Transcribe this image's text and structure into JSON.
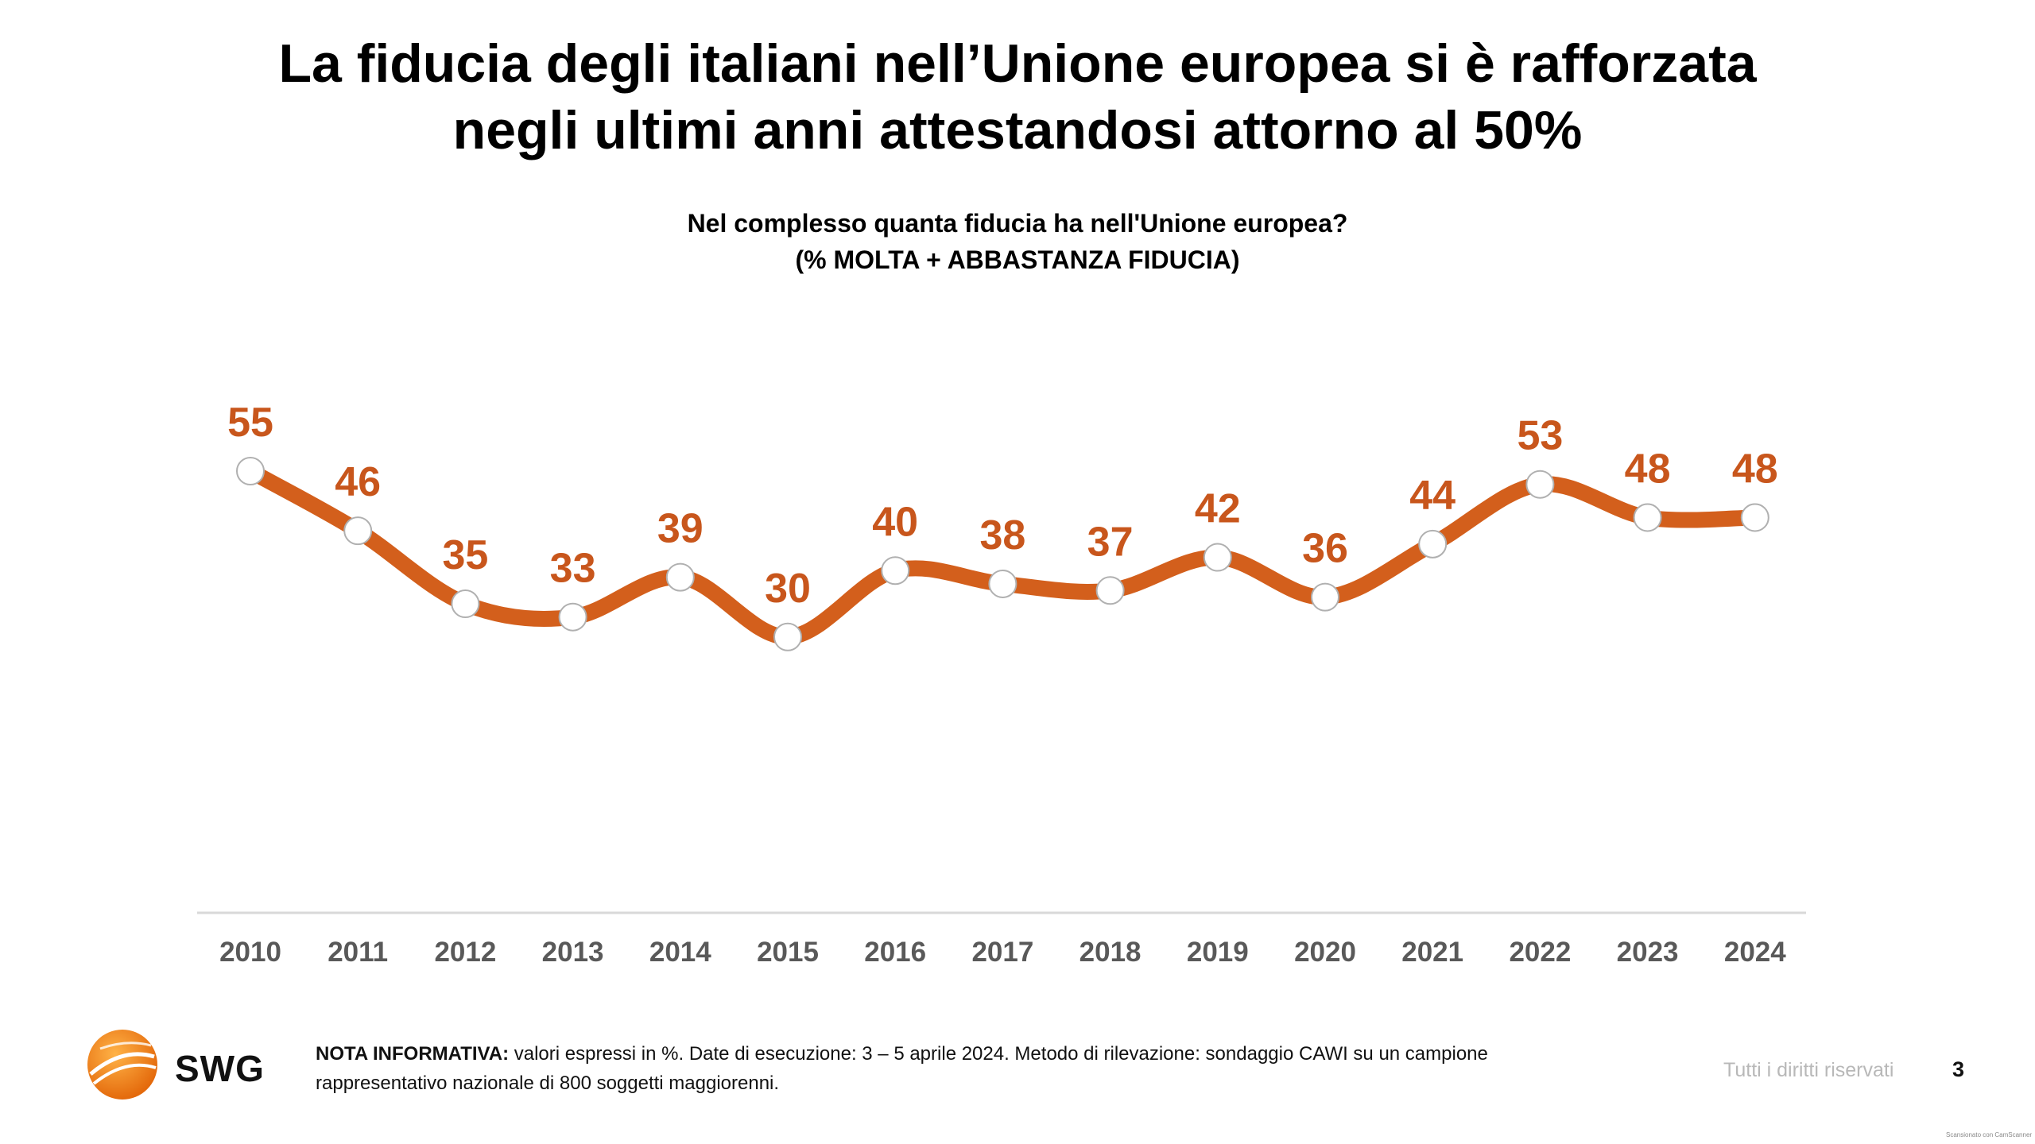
{
  "title_lines": [
    "La fiducia degli italiani nell’Unione europea si è rafforzata",
    "negli ultimi anni attestandosi attorno al 50%"
  ],
  "subtitle_lines": [
    "Nel complesso quanta fiducia ha nell'Unione europea?",
    "(% MOLTA + ABBASTANZA FIDUCIA)"
  ],
  "chart_data": {
    "type": "line",
    "title": "Nel complesso quanta fiducia ha nell'Unione europea?",
    "subtitle": "(% MOLTA + ABBASTANZA FIDUCIA)",
    "categories": [
      "2010",
      "2011",
      "2012",
      "2013",
      "2014",
      "2015",
      "2016",
      "2017",
      "2018",
      "2019",
      "2020",
      "2021",
      "2022",
      "2023",
      "2024"
    ],
    "series": [
      {
        "name": "% molta + abbastanza fiducia",
        "values": [
          55,
          46,
          35,
          33,
          39,
          30,
          40,
          38,
          37,
          42,
          36,
          44,
          53,
          48,
          48
        ]
      }
    ],
    "xlabel": "",
    "ylabel": "",
    "grid": false,
    "legend": "none",
    "data_labels": true
  },
  "colors": {
    "line": "#d35f1c",
    "label": "#c8561c",
    "marker_fill": "#ffffff",
    "marker_stroke": "#b0b0b0",
    "axis": "#d9d9d9",
    "tick_text": "#595959"
  },
  "footer": {
    "logo_icon": "swg-globe-icon",
    "logo_text": "SWG",
    "note_label": "NOTA INFORMATIVA:",
    "note_text": " valori espressi in %. Date di esecuzione: 3 – 5 aprile 2024. Metodo di rilevazione: sondaggio CAWI su un campione rappresentativo nazionale di 800 soggetti maggiorenni.",
    "rights": "Tutti i diritti riservati",
    "page_number": "3",
    "scanner_note": "Scansionato con CamScanner"
  }
}
